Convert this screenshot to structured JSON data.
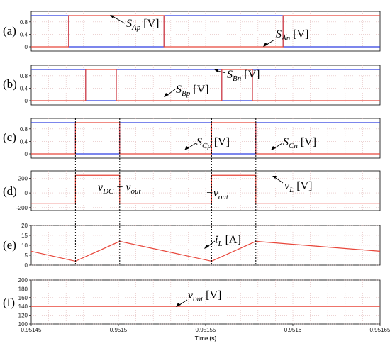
{
  "colors": {
    "red": "#e8463a",
    "blue": "#2f3fe0",
    "grid": "#e2b8b8",
    "frame": "#000000"
  },
  "chart_data": [
    {
      "type": "line",
      "panel_label": "(a)",
      "ylim": [
        0,
        1
      ],
      "yticks": [
        "0",
        "0.4",
        "0.8"
      ],
      "series": [
        {
          "name": "S_Ap [V]",
          "color": "red",
          "points": [
            [
              0.95145,
              0
            ],
            [
              0.951472,
              0
            ],
            [
              0.951472,
              1
            ],
            [
              0.951528,
              1
            ],
            [
              0.951528,
              0
            ],
            [
              0.951598,
              0
            ],
            [
              0.951598,
              1
            ],
            [
              0.951655,
              1
            ]
          ]
        },
        {
          "name": "S_An [V]",
          "color": "blue",
          "points": [
            [
              0.95145,
              1
            ],
            [
              0.951472,
              1
            ],
            [
              0.951472,
              0
            ],
            [
              0.951528,
              0
            ],
            [
              0.951528,
              1
            ],
            [
              0.951598,
              1
            ],
            [
              0.951598,
              0
            ],
            [
              0.951655,
              0
            ]
          ]
        }
      ],
      "annotations": [
        {
          "main": "S",
          "sub": "Ap",
          "unit": " [V]"
        },
        {
          "main": "S",
          "sub": "An",
          "unit": " [V]"
        }
      ]
    },
    {
      "type": "line",
      "panel_label": "(b)",
      "ylim": [
        0,
        1
      ],
      "yticks": [
        "0",
        "0.4",
        "0.8"
      ],
      "series": [
        {
          "name": "S_Bn [V]",
          "color": "blue",
          "points": [
            [
              0.95145,
              1
            ],
            [
              0.951482,
              1
            ],
            [
              0.951482,
              0
            ],
            [
              0.9515,
              0
            ],
            [
              0.9515,
              1
            ],
            [
              0.951562,
              1
            ],
            [
              0.951562,
              0
            ],
            [
              0.95158,
              0
            ],
            [
              0.95158,
              1
            ],
            [
              0.951655,
              1
            ]
          ]
        },
        {
          "name": "S_Bp [V]",
          "color": "red",
          "points": [
            [
              0.95145,
              0
            ],
            [
              0.951482,
              0
            ],
            [
              0.951482,
              1
            ],
            [
              0.9515,
              1
            ],
            [
              0.9515,
              0
            ],
            [
              0.951562,
              0
            ],
            [
              0.951562,
              1
            ],
            [
              0.95158,
              1
            ],
            [
              0.95158,
              0
            ],
            [
              0.951655,
              0
            ]
          ]
        }
      ],
      "annotations": [
        {
          "main": "S",
          "sub": "Bn",
          "unit": " [V]"
        },
        {
          "main": "S",
          "sub": "Bp",
          "unit": " [V]"
        }
      ]
    },
    {
      "type": "line",
      "panel_label": "(c)",
      "ylim": [
        0,
        1
      ],
      "yticks": [
        "0",
        "0.4",
        "0.8"
      ],
      "series": [
        {
          "name": "S_Cp [V]",
          "color": "blue",
          "points": [
            [
              0.95145,
              1
            ],
            [
              0.951476,
              1
            ],
            [
              0.951476,
              0
            ],
            [
              0.951502,
              0
            ],
            [
              0.951502,
              1
            ],
            [
              0.951556,
              1
            ],
            [
              0.951556,
              0
            ],
            [
              0.951582,
              0
            ],
            [
              0.951582,
              1
            ],
            [
              0.951655,
              1
            ]
          ]
        },
        {
          "name": "S_Cn [V]",
          "color": "red",
          "points": [
            [
              0.95145,
              0
            ],
            [
              0.951476,
              0
            ],
            [
              0.951476,
              1
            ],
            [
              0.951502,
              1
            ],
            [
              0.951502,
              0
            ],
            [
              0.951556,
              0
            ],
            [
              0.951556,
              1
            ],
            [
              0.951582,
              1
            ],
            [
              0.951582,
              0
            ],
            [
              0.951655,
              0
            ]
          ]
        }
      ],
      "annotations": [
        {
          "main": "S",
          "sub": "Cp",
          "unit": " [V]"
        },
        {
          "main": "S",
          "sub": "Cn",
          "unit": " [V]"
        }
      ]
    },
    {
      "type": "line",
      "panel_label": "(d)",
      "ylim": [
        -240,
        300
      ],
      "yticks": [
        "-200",
        "0",
        "200"
      ],
      "series": [
        {
          "name": "v_L [V]",
          "color": "red",
          "points": [
            [
              0.95145,
              -140
            ],
            [
              0.951476,
              -140
            ],
            [
              0.951476,
              240
            ],
            [
              0.951502,
              240
            ],
            [
              0.951502,
              -140
            ],
            [
              0.951556,
              -140
            ],
            [
              0.951556,
              240
            ],
            [
              0.951582,
              240
            ],
            [
              0.951582,
              -140
            ],
            [
              0.951655,
              -140
            ]
          ]
        }
      ],
      "annotations": [
        {
          "main": "v",
          "sub": "DC",
          "mid": " − ",
          "main2": "v",
          "sub2": "out"
        },
        {
          "main": "−v",
          "sub": "out"
        },
        {
          "main": "v",
          "sub": "L",
          "unit": " [V]"
        }
      ]
    },
    {
      "type": "line",
      "panel_label": "(e)",
      "ylim": [
        0,
        20
      ],
      "yticks": [
        "0",
        "5",
        "10",
        "15",
        "20"
      ],
      "series": [
        {
          "name": "i_L [A]",
          "color": "red",
          "points": [
            [
              0.95145,
              7
            ],
            [
              0.951476,
              2
            ],
            [
              0.951502,
              12
            ],
            [
              0.951556,
              2
            ],
            [
              0.951582,
              12
            ],
            [
              0.951655,
              7
            ]
          ]
        }
      ],
      "annotations": [
        {
          "main": "i",
          "sub": "L",
          "unit": " [A]"
        }
      ]
    },
    {
      "type": "line",
      "panel_label": "(f)",
      "ylim": [
        100,
        200
      ],
      "yticks": [
        "100",
        "120",
        "140",
        "160",
        "180",
        "200"
      ],
      "xlabel": "Time (s)",
      "xticks": [
        "0.95145",
        "0.9515",
        "0.95155",
        "0.9516",
        "0.95165"
      ],
      "series": [
        {
          "name": "v_out [V]",
          "color": "red",
          "points": [
            [
              0.95145,
              140
            ],
            [
              0.951655,
              140
            ]
          ]
        }
      ],
      "annotations": [
        {
          "main": "v",
          "sub": "out",
          "unit": " [V]"
        }
      ]
    }
  ],
  "x_domain": [
    0.95145,
    0.951655
  ],
  "cursor_times": [
    0.951476,
    0.951502,
    0.951556,
    0.951582
  ]
}
